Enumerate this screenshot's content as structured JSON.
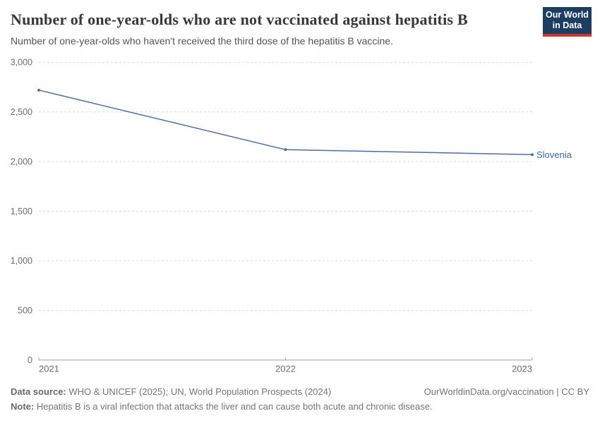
{
  "header": {
    "title": "Number of one-year-olds who are not vaccinated against hepatitis B",
    "subtitle": "Number of one-year-olds who haven't received the third dose of the hepatitis B vaccine."
  },
  "logo": {
    "line1": "Our World",
    "line2": "in Data",
    "bg_color": "#1d3d63",
    "bar_color": "#d0342c"
  },
  "chart_data": {
    "type": "line",
    "title": "Number of one-year-olds who are not vaccinated against hepatitis B",
    "x": [
      2021,
      2022,
      2023
    ],
    "series": [
      {
        "name": "Slovenia",
        "values": [
          2720,
          2120,
          2070
        ],
        "color": "#4c6da8",
        "label_color": "#3a64ad"
      }
    ],
    "xlabel": "",
    "ylabel": "",
    "ylim": [
      0,
      3000
    ],
    "yticks": [
      0,
      500,
      1000,
      1500,
      2000,
      2500,
      3000
    ],
    "xticks": [
      "2021",
      "2022",
      "2023"
    ],
    "grid": "horizontal-dashed",
    "legend_position": "right-of-line-end",
    "axis_color": "#a3a3a3",
    "grid_color": "#dcdcdc",
    "tick_label_color": "#6e6e6e"
  },
  "footer": {
    "source_label": "Data source:",
    "source_text": " WHO & UNICEF (2025); UN, World Population Prospects (2024)",
    "link_text": "OurWorldinData.org/vaccination | CC BY",
    "note_label": "Note:",
    "note_text": " Hepatitis B is a viral infection that attacks the liver and can cause both acute and chronic disease."
  }
}
